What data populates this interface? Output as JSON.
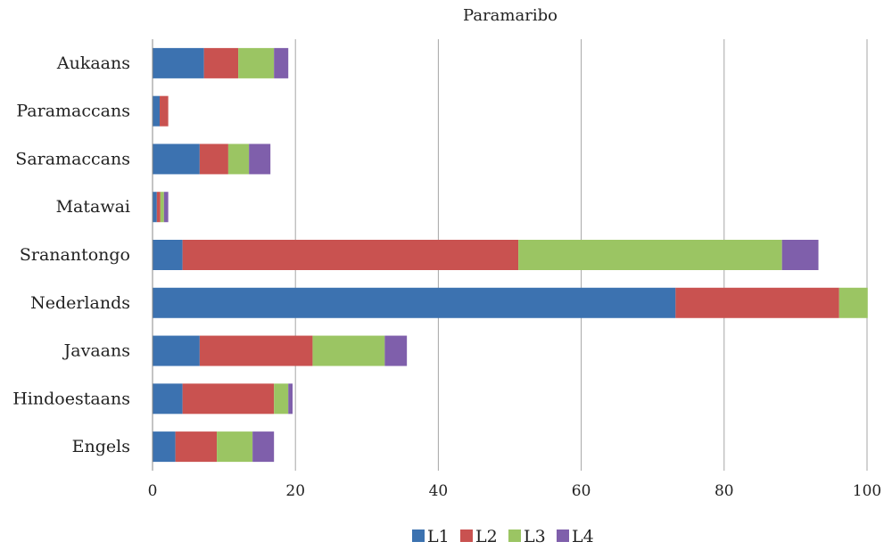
{
  "chart_data": {
    "type": "bar",
    "orientation": "horizontal",
    "stacked": true,
    "title": "Paramaribo",
    "categories": [
      "Aukaans",
      "Paramaccans",
      "Saramaccans",
      "Matawai",
      "Sranantongo",
      "Nederlands",
      "Javaans",
      "Hindoestaans",
      "Engels"
    ],
    "series": [
      {
        "name": "L1",
        "color": "#3c72b0",
        "values": [
          7.2,
          1.0,
          6.6,
          0.6,
          4.2,
          73.2,
          6.6,
          4.2,
          3.2
        ]
      },
      {
        "name": "L2",
        "color": "#c95250",
        "values": [
          4.8,
          1.2,
          4.0,
          0.5,
          47.0,
          22.9,
          15.8,
          12.8,
          5.8
        ]
      },
      {
        "name": "L3",
        "color": "#9bc563",
        "values": [
          5.0,
          0.0,
          2.9,
          0.5,
          36.9,
          4.0,
          10.1,
          2.0,
          5.0
        ]
      },
      {
        "name": "L4",
        "color": "#7f5fab",
        "values": [
          2.0,
          0.0,
          3.0,
          0.6,
          5.1,
          0.0,
          3.1,
          0.6,
          3.0
        ]
      }
    ],
    "xlim": [
      0,
      100
    ],
    "xticks": [
      0,
      20,
      40,
      60,
      80,
      100
    ],
    "xlabel": "",
    "ylabel": "",
    "grid": "vertical",
    "legend_position": "bottom"
  }
}
